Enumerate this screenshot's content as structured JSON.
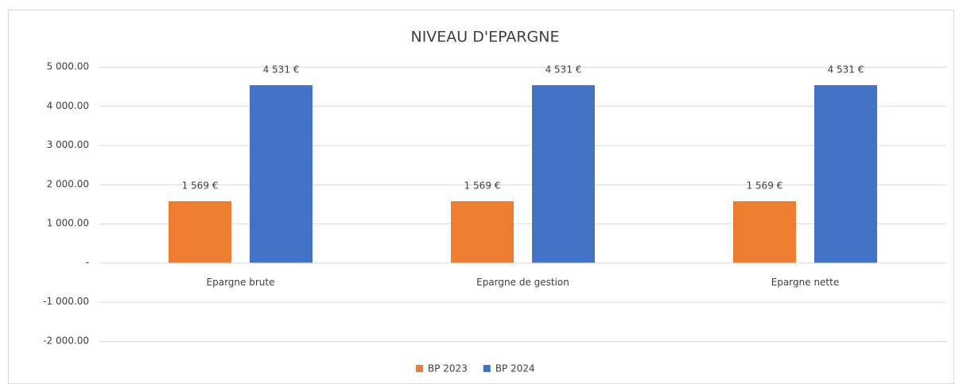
{
  "chart_data": {
    "type": "bar",
    "title": "NIVEAU D'EPARGNE",
    "categories": [
      "Epargne brute",
      "Epargne de gestion",
      "Epargne nette"
    ],
    "series": [
      {
        "name": "BP 2023",
        "color": "#ed7d31",
        "values": [
          1569,
          1569,
          1569
        ],
        "value_labels": [
          "1 569 €",
          "1 569 €",
          "1 569 €"
        ]
      },
      {
        "name": "BP 2024",
        "color": "#4472c4",
        "values": [
          4531,
          4531,
          4531
        ],
        "value_labels": [
          "4 531 €",
          "4 531 €",
          "4 531 €"
        ]
      }
    ],
    "ylim": [
      -2000,
      5000
    ],
    "yticks": [
      {
        "value": -2000,
        "label": "-2 000.00"
      },
      {
        "value": -1000,
        "label": "-1 000.00"
      },
      {
        "value": 0,
        "label": "-"
      },
      {
        "value": 1000,
        "label": "1 000.00"
      },
      {
        "value": 2000,
        "label": "2 000.00"
      },
      {
        "value": 3000,
        "label": "3 000.00"
      },
      {
        "value": 4000,
        "label": "4 000.00"
      },
      {
        "value": 5000,
        "label": "5 000.00"
      }
    ],
    "grid": true,
    "legend": "bottom"
  }
}
